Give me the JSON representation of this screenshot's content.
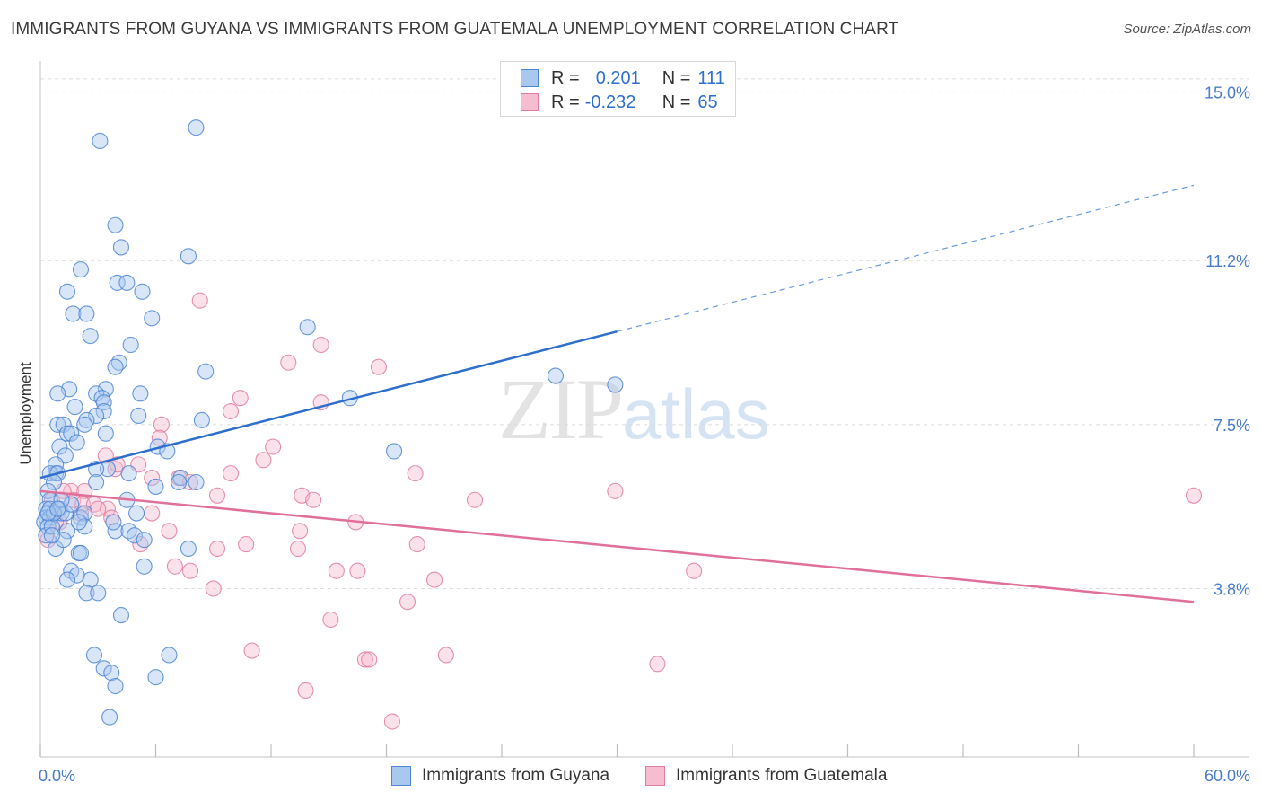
{
  "title": "IMMIGRANTS FROM GUYANA VS IMMIGRANTS FROM GUATEMALA UNEMPLOYMENT CORRELATION CHART",
  "source": "Source: ZipAtlas.com",
  "watermark": {
    "zip": "ZIP",
    "atlas": "atlas"
  },
  "legend": {
    "rows": [
      {
        "r_label": "R =",
        "r_value": "0.201",
        "n_label": "N =",
        "n_value": "111"
      },
      {
        "r_label": "R =",
        "r_value": "-0.232",
        "n_label": "N =",
        "n_value": "65"
      }
    ]
  },
  "bottom_legend": {
    "series1": "Immigrants from Guyana",
    "series2": "Immigrants from Guatemala"
  },
  "colors": {
    "blue_fill": "#a9c8f0",
    "blue_stroke": "#4f86d4",
    "blue_line": "#2e6fcc",
    "pink_fill": "#f6bcd0",
    "pink_stroke": "#e07ca0",
    "pink_line": "#e0709a",
    "tick": "#4a7cc7",
    "grid": "#dcdcdc"
  },
  "chart_data": {
    "type": "scatter",
    "title": "IMMIGRANTS FROM GUYANA VS IMMIGRANTS FROM GUATEMALA UNEMPLOYMENT CORRELATION CHART",
    "xlabel": "",
    "ylabel": "Unemployment",
    "xlim": [
      0,
      60
    ],
    "ylim": [
      0,
      15.5
    ],
    "x_tick_labels": [
      "0.0%",
      "60.0%"
    ],
    "y_ticks": [
      3.8,
      7.5,
      11.2,
      15.0
    ],
    "y_tick_labels": [
      "3.8%",
      "7.5%",
      "11.2%",
      "15.0%"
    ],
    "series": [
      {
        "name": "Immigrants from Guyana",
        "r": 0.201,
        "n": 111,
        "trend": {
          "x0": 0,
          "y0": 6.3,
          "x1": 60,
          "y1": 12.9,
          "solid_until": 30
        },
        "points": [
          [
            3.1,
            13.9
          ],
          [
            8.1,
            14.2
          ],
          [
            3.9,
            12.0
          ],
          [
            4.2,
            11.5
          ],
          [
            7.7,
            11.3
          ],
          [
            2.1,
            11.0
          ],
          [
            4.0,
            10.7
          ],
          [
            4.5,
            10.7
          ],
          [
            5.3,
            10.5
          ],
          [
            1.4,
            10.5
          ],
          [
            1.7,
            10.0
          ],
          [
            2.4,
            10.0
          ],
          [
            5.8,
            9.9
          ],
          [
            13.9,
            9.7
          ],
          [
            2.6,
            9.5
          ],
          [
            4.7,
            9.3
          ],
          [
            4.1,
            8.9
          ],
          [
            3.9,
            8.8
          ],
          [
            8.6,
            8.7
          ],
          [
            26.8,
            8.6
          ],
          [
            29.9,
            8.4
          ],
          [
            3.4,
            8.3
          ],
          [
            1.5,
            8.3
          ],
          [
            0.9,
            8.2
          ],
          [
            2.9,
            8.2
          ],
          [
            5.2,
            8.2
          ],
          [
            3.2,
            8.1
          ],
          [
            16.1,
            8.1
          ],
          [
            3.3,
            8.0
          ],
          [
            1.8,
            7.9
          ],
          [
            3.3,
            7.8
          ],
          [
            2.9,
            7.7
          ],
          [
            5.1,
            7.7
          ],
          [
            8.4,
            7.6
          ],
          [
            2.4,
            7.6
          ],
          [
            2.3,
            7.5
          ],
          [
            0.9,
            7.5
          ],
          [
            1.2,
            7.5
          ],
          [
            1.4,
            7.3
          ],
          [
            1.6,
            7.3
          ],
          [
            3.4,
            7.3
          ],
          [
            1.9,
            7.1
          ],
          [
            1.0,
            7.0
          ],
          [
            6.1,
            7.0
          ],
          [
            6.6,
            6.9
          ],
          [
            18.4,
            6.9
          ],
          [
            1.3,
            6.8
          ],
          [
            0.8,
            6.6
          ],
          [
            3.5,
            6.5
          ],
          [
            2.9,
            6.5
          ],
          [
            0.8,
            6.4
          ],
          [
            0.5,
            6.4
          ],
          [
            0.9,
            6.4
          ],
          [
            4.6,
            6.4
          ],
          [
            2.9,
            6.2
          ],
          [
            0.7,
            6.2
          ],
          [
            6.0,
            6.1
          ],
          [
            7.3,
            6.3
          ],
          [
            7.2,
            6.2
          ],
          [
            8.1,
            6.2
          ],
          [
            0.4,
            6.0
          ],
          [
            0.5,
            5.8
          ],
          [
            4.5,
            5.8
          ],
          [
            0.3,
            5.6
          ],
          [
            0.5,
            5.6
          ],
          [
            1.0,
            5.6
          ],
          [
            1.1,
            5.5
          ],
          [
            1.3,
            5.5
          ],
          [
            1.6,
            5.7
          ],
          [
            2.1,
            5.4
          ],
          [
            2.3,
            5.5
          ],
          [
            5.0,
            5.5
          ],
          [
            0.3,
            5.4
          ],
          [
            0.5,
            5.4
          ],
          [
            0.2,
            5.3
          ],
          [
            0.4,
            5.2
          ],
          [
            2.3,
            5.2
          ],
          [
            1.4,
            5.1
          ],
          [
            3.9,
            5.1
          ],
          [
            4.6,
            5.1
          ],
          [
            0.3,
            5.0
          ],
          [
            4.9,
            5.0
          ],
          [
            5.4,
            4.9
          ],
          [
            0.8,
            4.7
          ],
          [
            2.0,
            4.6
          ],
          [
            7.7,
            4.7
          ],
          [
            2.1,
            4.6
          ],
          [
            5.4,
            4.3
          ],
          [
            1.6,
            4.2
          ],
          [
            1.9,
            4.1
          ],
          [
            1.4,
            4.0
          ],
          [
            2.6,
            4.0
          ],
          [
            2.4,
            3.7
          ],
          [
            3.0,
            3.7
          ],
          [
            4.2,
            3.2
          ],
          [
            2.8,
            2.3
          ],
          [
            6.7,
            2.3
          ],
          [
            3.3,
            2.0
          ],
          [
            3.7,
            1.9
          ],
          [
            6.0,
            1.8
          ],
          [
            3.9,
            1.6
          ],
          [
            3.6,
            0.9
          ],
          [
            0.6,
            5.2
          ],
          [
            1.1,
            5.8
          ],
          [
            0.7,
            5.5
          ],
          [
            2.0,
            5.3
          ],
          [
            3.8,
            5.3
          ],
          [
            0.4,
            5.5
          ],
          [
            1.2,
            4.9
          ],
          [
            0.9,
            5.6
          ],
          [
            0.6,
            5.0
          ]
        ]
      },
      {
        "name": "Immigrants from Guatemala",
        "r": -0.232,
        "n": 65,
        "trend": {
          "x0": 0,
          "y0": 6.0,
          "x1": 60,
          "y1": 3.5
        },
        "points": [
          [
            8.3,
            10.3
          ],
          [
            14.6,
            9.3
          ],
          [
            12.9,
            8.9
          ],
          [
            17.6,
            8.8
          ],
          [
            10.4,
            8.1
          ],
          [
            14.6,
            8.0
          ],
          [
            9.9,
            7.8
          ],
          [
            6.3,
            7.5
          ],
          [
            6.2,
            7.2
          ],
          [
            12.1,
            7.0
          ],
          [
            3.4,
            6.8
          ],
          [
            5.1,
            6.6
          ],
          [
            11.6,
            6.7
          ],
          [
            3.9,
            6.5
          ],
          [
            9.9,
            6.4
          ],
          [
            19.5,
            6.4
          ],
          [
            5.8,
            6.3
          ],
          [
            7.2,
            6.3
          ],
          [
            7.8,
            6.2
          ],
          [
            29.9,
            6.0
          ],
          [
            1.6,
            6.0
          ],
          [
            2.3,
            6.0
          ],
          [
            9.2,
            5.9
          ],
          [
            13.6,
            5.9
          ],
          [
            14.2,
            5.8
          ],
          [
            22.6,
            5.8
          ],
          [
            1.7,
            5.8
          ],
          [
            0.6,
            5.8
          ],
          [
            2.2,
            5.7
          ],
          [
            2.8,
            5.7
          ],
          [
            3.5,
            5.6
          ],
          [
            3.0,
            5.6
          ],
          [
            5.8,
            5.5
          ],
          [
            3.7,
            5.4
          ],
          [
            16.4,
            5.3
          ],
          [
            1.0,
            5.3
          ],
          [
            6.7,
            5.1
          ],
          [
            9.2,
            4.7
          ],
          [
            13.5,
            5.1
          ],
          [
            19.6,
            4.8
          ],
          [
            10.7,
            4.8
          ],
          [
            13.4,
            4.7
          ],
          [
            5.2,
            4.8
          ],
          [
            7.0,
            4.3
          ],
          [
            7.8,
            4.2
          ],
          [
            15.4,
            4.2
          ],
          [
            16.5,
            4.2
          ],
          [
            34.0,
            4.2
          ],
          [
            20.5,
            4.0
          ],
          [
            9.0,
            3.8
          ],
          [
            19.1,
            3.5
          ],
          [
            15.1,
            3.1
          ],
          [
            60.0,
            5.9
          ],
          [
            11.0,
            2.4
          ],
          [
            16.9,
            2.2
          ],
          [
            17.1,
            2.2
          ],
          [
            21.1,
            2.3
          ],
          [
            32.1,
            2.1
          ],
          [
            13.8,
            1.5
          ],
          [
            18.3,
            0.8
          ],
          [
            0.4,
            4.9
          ],
          [
            4.0,
            6.6
          ],
          [
            1.2,
            6.0
          ],
          [
            0.8,
            5.3
          ],
          [
            2.1,
            5.5
          ]
        ]
      }
    ]
  }
}
